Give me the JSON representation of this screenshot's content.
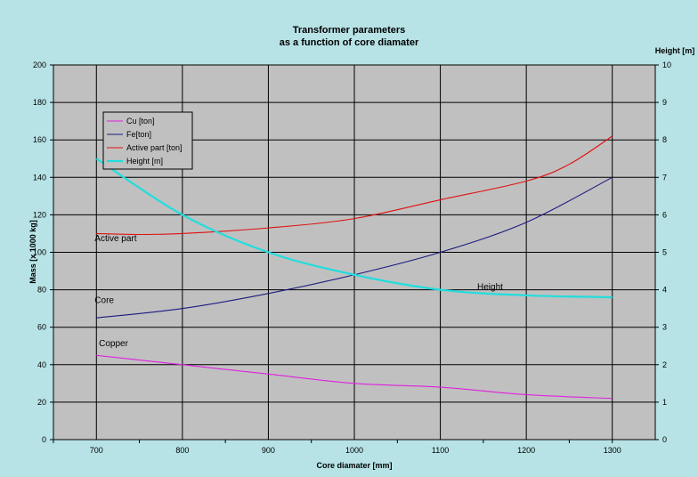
{
  "chart_data": {
    "type": "line",
    "title": "Transformer parameters",
    "subtitle": "as a function of core diamater",
    "xlabel": "Core diamater [mm]",
    "ylabel": "Mass [x 1000 kg]",
    "y2label": "Height [m]",
    "xlim": [
      650,
      1350
    ],
    "ylim": [
      0,
      200
    ],
    "y2lim": [
      0,
      10
    ],
    "x_ticks": [
      700,
      800,
      900,
      1000,
      1100,
      1200,
      1300
    ],
    "y_ticks": [
      0,
      20,
      40,
      60,
      80,
      100,
      120,
      140,
      160,
      180,
      200
    ],
    "y2_ticks": [
      0,
      1,
      2,
      3,
      4,
      5,
      6,
      7,
      8,
      9,
      10
    ],
    "grid": true,
    "legend_position": "top-left",
    "series": [
      {
        "name": "Cu [ton]",
        "color": "#e020e0",
        "axis": "left",
        "x": [
          700,
          800,
          900,
          1000,
          1100,
          1200,
          1300
        ],
        "y": [
          45,
          40,
          35,
          30,
          28,
          24,
          22
        ]
      },
      {
        "name": "Fe[ton]",
        "color": "#1a1a80",
        "axis": "left",
        "x": [
          700,
          800,
          900,
          1000,
          1100,
          1200,
          1300
        ],
        "y": [
          65,
          70,
          78,
          88,
          100,
          116,
          140
        ]
      },
      {
        "name": "Active part [ton]",
        "color": "#e01010",
        "axis": "left",
        "x": [
          700,
          750,
          800,
          900,
          1000,
          1100,
          1200,
          1250,
          1300
        ],
        "y": [
          110,
          109.5,
          110,
          113,
          118,
          128,
          138,
          147,
          162
        ]
      },
      {
        "name": "Height [m]",
        "color": "#22dddd",
        "axis": "right",
        "x": [
          700,
          800,
          900,
          1000,
          1100,
          1200,
          1300
        ],
        "y": [
          7.5,
          6.0,
          5.0,
          4.4,
          4.0,
          3.85,
          3.8
        ]
      }
    ],
    "annotations": [
      {
        "text": "Active part",
        "x": 700,
        "y": 106
      },
      {
        "text": "Core",
        "x": 700,
        "y": 73
      },
      {
        "text": "Copper",
        "x": 705,
        "y": 50
      },
      {
        "text": "Height",
        "x": 1145,
        "y": 80
      }
    ]
  }
}
